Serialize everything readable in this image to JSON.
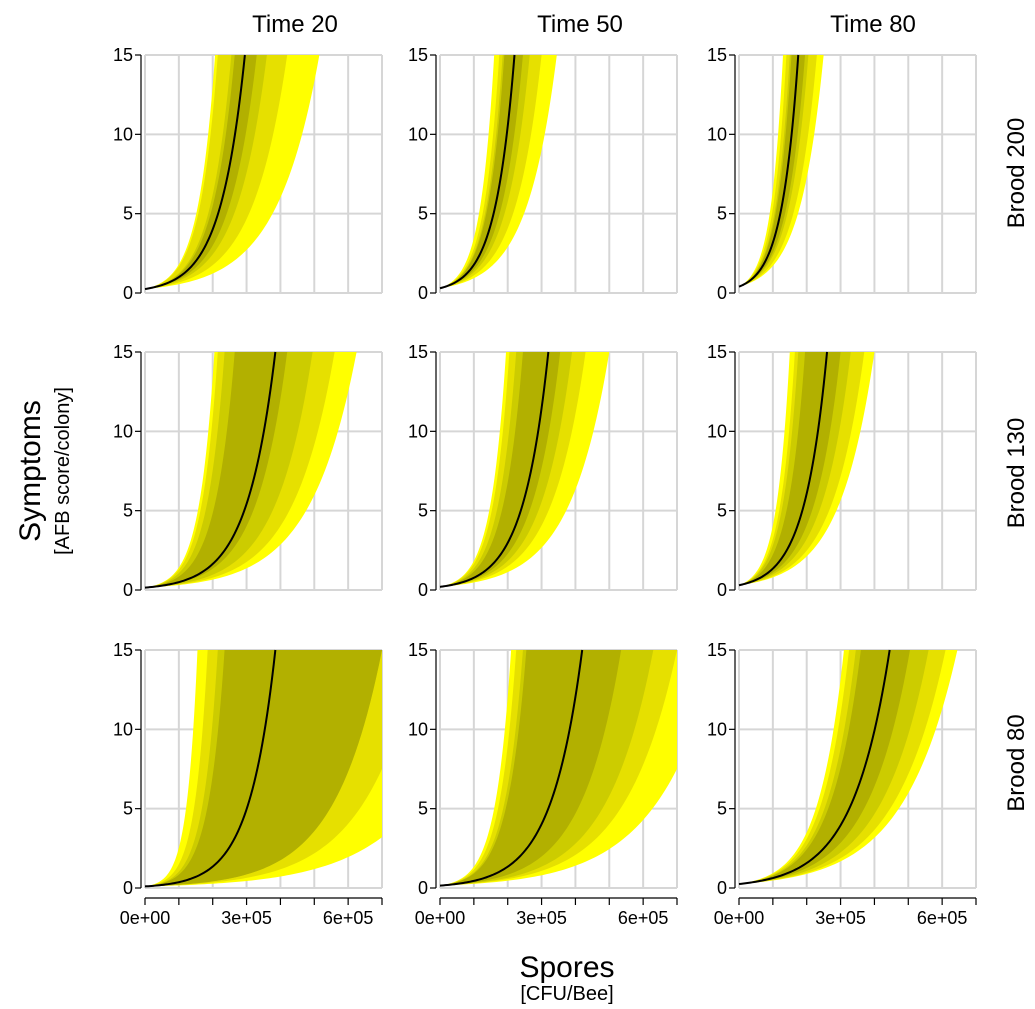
{
  "chart_data": {
    "type": "area",
    "layout": "facet-grid-3x3",
    "col_titles": [
      "Time 20",
      "Time 50",
      "Time 80"
    ],
    "row_labels": [
      "Brood 200",
      "Brood 130",
      "Brood 80"
    ],
    "xlabel": "Spores",
    "xlabel_unit": "[CFU/Bee]",
    "ylabel": "Symptoms",
    "ylabel_unit": "[AFB score/colony]",
    "xlim": [
      0,
      700000
    ],
    "ylim": [
      0,
      15
    ],
    "x_ticks": [
      0,
      100000,
      200000,
      300000,
      400000,
      500000,
      600000,
      700000
    ],
    "x_tick_labels": [
      {
        "value": 0,
        "label": "0e+00"
      },
      {
        "value": 300000,
        "label": "3e+05"
      },
      {
        "value": 600000,
        "label": "6e+05"
      }
    ],
    "y_ticks": [
      0,
      5,
      10,
      15
    ],
    "y_tick_labels": [
      "0",
      "5",
      "10",
      "15"
    ],
    "grid": true,
    "band_colors": [
      "#ffff00",
      "#e6e000",
      "#cccc00",
      "#b2b000"
    ],
    "line_color": "#000000",
    "panels": [
      {
        "row": 0,
        "col": 0,
        "y0": 0.25,
        "band_x15": [
          [
            207000,
            515000
          ],
          [
            215000,
            420000
          ],
          [
            255000,
            360000
          ],
          [
            265000,
            330000
          ]
        ],
        "median_x15": 295000
      },
      {
        "row": 0,
        "col": 1,
        "y0": 0.3,
        "band_x15": [
          [
            160000,
            345000
          ],
          [
            175000,
            300000
          ],
          [
            185000,
            265000
          ],
          [
            190000,
            245000
          ]
        ],
        "median_x15": 220000
      },
      {
        "row": 0,
        "col": 2,
        "y0": 0.4,
        "band_x15": [
          [
            130000,
            250000
          ],
          [
            140000,
            230000
          ],
          [
            150000,
            205000
          ],
          [
            155000,
            195000
          ]
        ],
        "median_x15": 175000
      },
      {
        "row": 1,
        "col": 0,
        "y0": 0.15,
        "band_x15": [
          [
            205000,
            625000
          ],
          [
            215000,
            560000
          ],
          [
            235000,
            495000
          ],
          [
            265000,
            420000
          ]
        ],
        "median_x15": 385000
      },
      {
        "row": 1,
        "col": 1,
        "y0": 0.2,
        "band_x15": [
          [
            195000,
            500000
          ],
          [
            205000,
            430000
          ],
          [
            225000,
            390000
          ],
          [
            245000,
            355000
          ]
        ],
        "median_x15": 320000
      },
      {
        "row": 1,
        "col": 2,
        "y0": 0.3,
        "band_x15": [
          [
            150000,
            400000
          ],
          [
            165000,
            370000
          ],
          [
            175000,
            330000
          ],
          [
            195000,
            300000
          ]
        ],
        "median_x15": 260000
      },
      {
        "row": 2,
        "col": 0,
        "y0": 0.1,
        "band_x15": [
          [
            155000,
            700000
          ],
          [
            185000,
            700000
          ],
          [
            215000,
            700000
          ],
          [
            235000,
            700000
          ]
        ],
        "median_x15": 385000,
        "band_y_at_xmax": [
          3.2,
          7.5,
          15,
          15
        ]
      },
      {
        "row": 2,
        "col": 1,
        "y0": 0.15,
        "band_x15": [
          [
            210000,
            700000
          ],
          [
            225000,
            700000
          ],
          [
            245000,
            630000
          ],
          [
            255000,
            535000
          ]
        ],
        "median_x15": 420000,
        "band_y_at_xmax": [
          7.5,
          15,
          15,
          15
        ]
      },
      {
        "row": 2,
        "col": 2,
        "y0": 0.25,
        "band_x15": [
          [
            310000,
            645000
          ],
          [
            325000,
            610000
          ],
          [
            345000,
            560000
          ],
          [
            360000,
            505000
          ]
        ],
        "median_x15": 445000
      }
    ]
  }
}
